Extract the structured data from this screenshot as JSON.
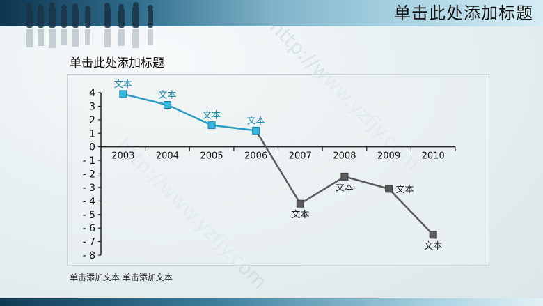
{
  "slide": {
    "title": "单击此处添加标题",
    "footnote": "单击添加文本 单击添加文本"
  },
  "colors": {
    "positive_series": "#2a9bc2",
    "positive_marker": "#35b6de",
    "negative_series": "#5a5a5a",
    "axis": "#222222"
  },
  "chart_data": {
    "type": "line",
    "title": "单击此处添加标题",
    "xlabel": "",
    "ylabel": "",
    "x": [
      "2003",
      "2004",
      "2005",
      "2006",
      "2007",
      "2008",
      "2009",
      "2010"
    ],
    "values": [
      3.9,
      3.1,
      1.6,
      1.2,
      -4.2,
      -2.2,
      -3.1,
      -6.5
    ],
    "point_labels": [
      "文本",
      "文本",
      "文本",
      "文本",
      "文本",
      "文本",
      "文本",
      "文本"
    ],
    "ylim": [
      -8,
      4
    ],
    "yticks": [
      "4",
      "3",
      "2",
      "1",
      "0",
      "- 1",
      "- 2",
      "- 3",
      "- 4",
      "- 5",
      "- 6",
      "- 7",
      "- 8"
    ],
    "grid": false,
    "legend": "none"
  }
}
